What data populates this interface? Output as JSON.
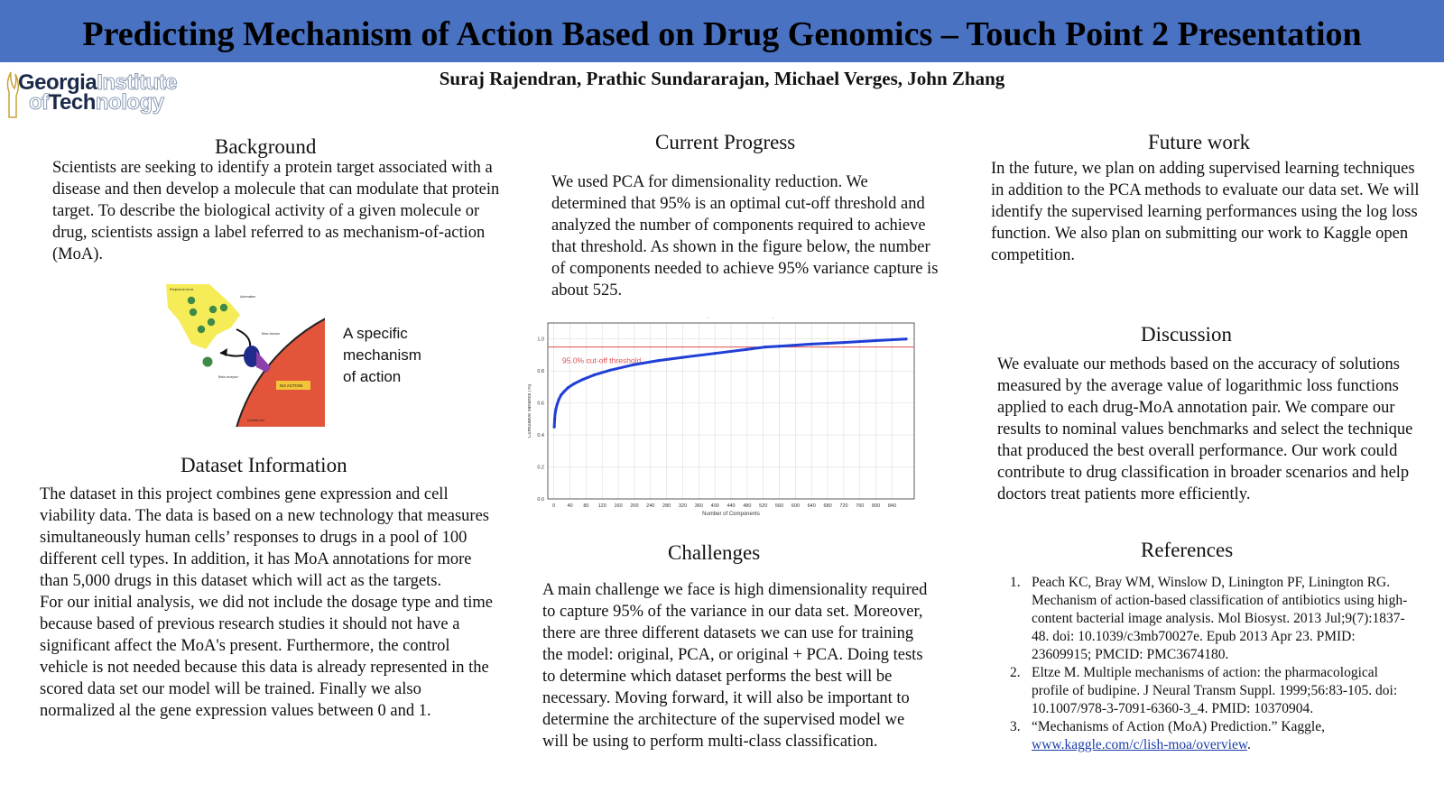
{
  "header": {
    "title": "Predicting Mechanism of Action Based on Drug Genomics – Touch Point 2 Presentation",
    "authors": "Suraj Rajendran, Prathic Sundararajan, Michael Verges, John Zhang"
  },
  "logo": {
    "line1_bold": "Georgia",
    "line1_outline": "Institute",
    "line2_outline_a": "of",
    "line2_bold": "Tech",
    "line2_outline_b": "nology"
  },
  "background": {
    "heading": "Background",
    "text": "Scientists are seeking to identify a protein target associated with a disease and then develop a molecule that can modulate that protein target. To describe the biological activity of a given molecule or drug, scientists assign a label referred to as mechanism-of-action (MoA)."
  },
  "figure": {
    "caption_lines": [
      "A specific",
      "mechanism",
      "of action"
    ],
    "labels": {
      "peripheral": "Peripheral nerve",
      "adrenaline": "Adrenaline",
      "blocker": "Beta-blocker",
      "receptor": "Beta-receptor",
      "no_action": "NO ACTION",
      "cell": "Cardiac cell"
    }
  },
  "dataset": {
    "heading": "Dataset Information",
    "paragraphs": [
      "The dataset in this project combines gene expression and cell viability data. The data is based on a new technology that measures simultaneously human cells’ responses to drugs in a pool of 100 different cell types. In addition, it has MoA annotations for more than 5,000 drugs in this dataset which will act as the targets.",
      "For our initial analysis, we did not include the dosage type and time because based of previous research studies it should not have a significant affect the MoA's present. Furthermore, the control vehicle is not needed because this data is already represented in the scored data set our model will be trained. Finally we also normalized al the gene expression values between 0 and 1."
    ]
  },
  "progress": {
    "heading": "Current Progress",
    "text": "We used PCA for dimensionality reduction. We determined that 95% is an optimal cut-off threshold and analyzed the number of components required to achieve that threshold. As shown in the figure below, the number of components needed to achieve 95% variance capture is about 525."
  },
  "challenges": {
    "heading": "Challenges",
    "text": "A main challenge we face is high dimensionality required to capture 95% of the variance in our data set. Moreover, there are three different datasets we can use for training the model: original, PCA, or original + PCA. Doing tests to determine which dataset performs the best will be necessary. Moving forward, it will also be important to determine the architecture of the supervised model we will be using to perform multi-class classification."
  },
  "future": {
    "heading": "Future work",
    "text": "In the future, we plan on adding supervised learning techniques in addition to the PCA methods to evaluate our data set. We will identify the supervised learning performances using the log loss function. We also plan on submitting our work to Kaggle open competition."
  },
  "discussion": {
    "heading": "Discussion",
    "text": "We evaluate our methods based on the accuracy of solutions measured by the average value of logarithmic loss functions applied to each drug-MoA annotation pair. We compare our results to nominal values benchmarks and select the technique that produced the best overall performance. Our work could contribute to drug classification in broader scenarios and help doctors treat patients more efficiently."
  },
  "references": {
    "heading": "References",
    "items": [
      {
        "num": "1.",
        "text": "Peach KC, Bray WM, Winslow D, Linington PF, Linington RG. Mechanism of action-based classification of antibiotics using high-content bacterial image analysis. Mol Biosyst. 2013 Jul;9(7):1837-48. doi: 10.1039/c3mb70027e. Epub 2013 Apr 23. PMID: 23609915; PMCID: PMC3674180."
      },
      {
        "num": "2.",
        "text": "Eltze M. Multiple mechanisms of action: the pharmacological profile of budipine. J Neural Transm Suppl. 1999;56:83-105. doi: 10.1007/978-3-7091-6360-3_4. PMID: 10370904."
      },
      {
        "num": "3.",
        "text": "“Mechanisms of Action (MoA) Prediction.” Kaggle,",
        "link": "www.kaggle.com/c/lish-moa/overview",
        "after": "."
      }
    ]
  },
  "chart_data": {
    "type": "line",
    "title": "The number of components needed to explain variance",
    "xlabel": "Number of Components",
    "ylabel": "Cumulative variance (%)",
    "xlim": [
      -15,
      895
    ],
    "ylim": [
      0,
      1.1
    ],
    "x_ticks": [
      0,
      40,
      80,
      120,
      160,
      200,
      240,
      280,
      320,
      360,
      400,
      440,
      480,
      520,
      560,
      600,
      640,
      680,
      720,
      760,
      800,
      840
    ],
    "y_ticks": [
      0.0,
      0.2,
      0.4,
      0.6,
      0.8,
      1.0
    ],
    "grid": true,
    "threshold": {
      "y": 0.95,
      "label": "95.0% cut-off threshold",
      "color": "#e05050"
    },
    "series": [
      {
        "color": "#1f3fd6",
        "x": [
          1,
          2,
          3,
          5,
          8,
          12,
          18,
          25,
          35,
          50,
          70,
          100,
          140,
          200,
          260,
          320,
          400,
          480,
          525,
          560,
          640,
          720,
          800,
          875
        ],
        "y": [
          0.45,
          0.5,
          0.53,
          0.56,
          0.59,
          0.62,
          0.65,
          0.67,
          0.695,
          0.72,
          0.745,
          0.775,
          0.805,
          0.84,
          0.865,
          0.885,
          0.91,
          0.935,
          0.95,
          0.955,
          0.968,
          0.978,
          0.99,
          1.0
        ]
      }
    ],
    "colors": {
      "line": "#1f3fd6",
      "threshold": "#e05050"
    }
  }
}
